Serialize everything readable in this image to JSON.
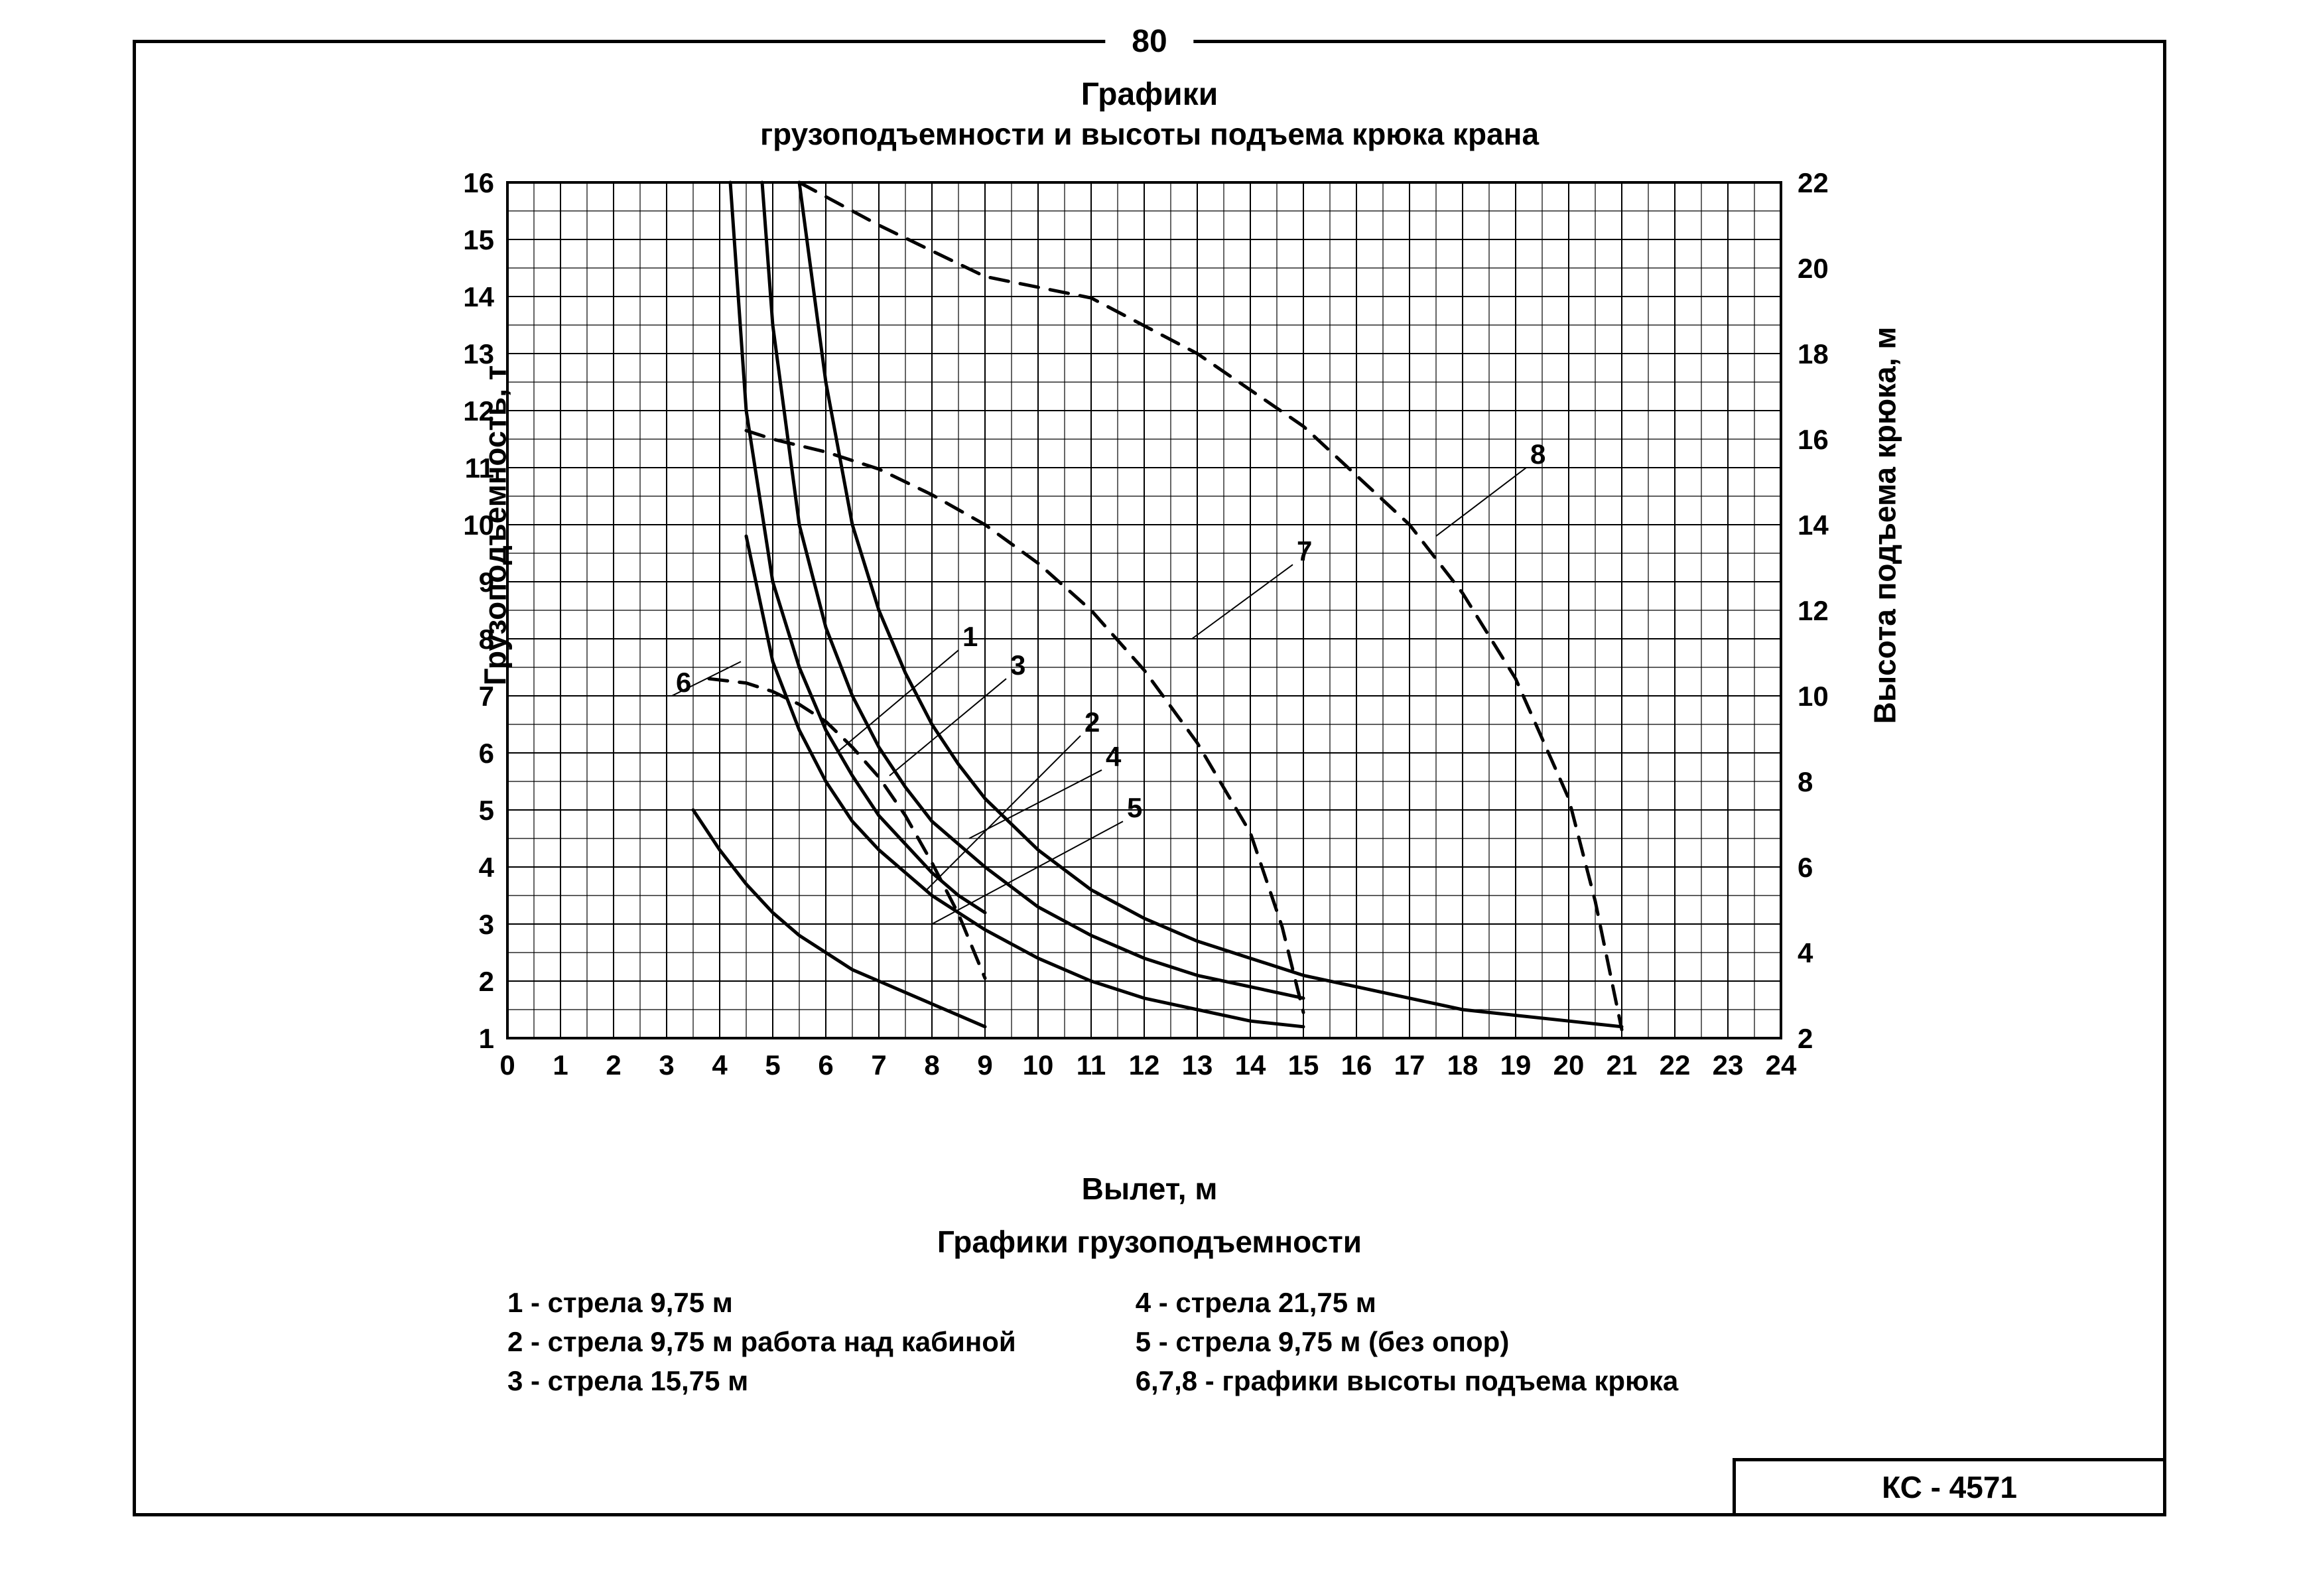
{
  "page_number": "80",
  "title_line1": "Графики",
  "title_line2": "грузоподъемности и высоты подъема крюка крана",
  "axis_left_label": "Грузоподъемность, т",
  "axis_right_label": "Высота подъема крюка, м",
  "axis_bottom_label": "Вылет, м",
  "subheading": "Графики грузоподъемности",
  "legend_col1": [
    "1 - стрела 9,75 м",
    "2 - стрела 9,75 м работа над кабиной",
    "3 - стрела 15,75 м"
  ],
  "legend_col2": [
    "4 - стрела 21,75 м",
    "5 - стрела 9,75 м (без опор)",
    "6,7,8 - графики высоты подъема крюка"
  ],
  "model_code": "КС - 4571",
  "chart": {
    "type": "line",
    "x": {
      "min": 0,
      "max": 24,
      "ticks": [
        0,
        1,
        2,
        3,
        4,
        5,
        6,
        7,
        8,
        9,
        10,
        11,
        12,
        13,
        14,
        15,
        16,
        17,
        18,
        19,
        20,
        21,
        22,
        23,
        24
      ]
    },
    "y_left": {
      "min": 1,
      "max": 16,
      "ticks": [
        1,
        2,
        3,
        4,
        5,
        6,
        7,
        8,
        9,
        10,
        11,
        12,
        13,
        14,
        15,
        16
      ]
    },
    "y_right": {
      "min": 2,
      "max": 22,
      "ticks": [
        2,
        4,
        6,
        8,
        10,
        12,
        14,
        16,
        18,
        20,
        22
      ]
    },
    "grid_minor_per_major": 2,
    "colors": {
      "line": "#000000",
      "grid": "#000000",
      "background": "#ffffff"
    },
    "stroke_width_solid": 5,
    "stroke_width_dashed": 5,
    "stroke_width_grid": 2,
    "stroke_width_grid_minor": 1.2,
    "dash_pattern": "28 18",
    "curves_solid": {
      "1": [
        [
          4.2,
          16
        ],
        [
          4.5,
          12
        ],
        [
          5,
          9
        ],
        [
          5.5,
          7.5
        ],
        [
          6,
          6.4
        ],
        [
          6.5,
          5.6
        ],
        [
          7,
          4.9
        ],
        [
          7.5,
          4.4
        ],
        [
          8,
          3.9
        ],
        [
          8.5,
          3.5
        ],
        [
          9,
          3.2
        ]
      ],
      "2": [
        [
          4.5,
          9.8
        ],
        [
          5,
          7.6
        ],
        [
          5.5,
          6.4
        ],
        [
          6,
          5.5
        ],
        [
          6.5,
          4.8
        ],
        [
          7,
          4.3
        ],
        [
          7.5,
          3.9
        ],
        [
          8,
          3.5
        ],
        [
          8.5,
          3.2
        ],
        [
          9,
          2.9
        ],
        [
          10,
          2.4
        ],
        [
          11,
          2.0
        ],
        [
          12,
          1.7
        ],
        [
          13,
          1.5
        ],
        [
          14,
          1.3
        ],
        [
          15,
          1.2
        ]
      ],
      "3": [
        [
          4.8,
          16
        ],
        [
          5,
          13.5
        ],
        [
          5.5,
          10
        ],
        [
          6,
          8.2
        ],
        [
          6.5,
          7
        ],
        [
          7,
          6.1
        ],
        [
          7.5,
          5.4
        ],
        [
          8,
          4.8
        ],
        [
          8.5,
          4.4
        ],
        [
          9,
          4.0
        ],
        [
          10,
          3.3
        ],
        [
          11,
          2.8
        ],
        [
          12,
          2.4
        ],
        [
          13,
          2.1
        ],
        [
          14,
          1.9
        ],
        [
          15,
          1.7
        ]
      ],
      "4": [
        [
          5.5,
          16
        ],
        [
          6,
          12.5
        ],
        [
          6.5,
          10
        ],
        [
          7,
          8.5
        ],
        [
          7.5,
          7.4
        ],
        [
          8,
          6.5
        ],
        [
          8.5,
          5.8
        ],
        [
          9,
          5.2
        ],
        [
          10,
          4.3
        ],
        [
          11,
          3.6
        ],
        [
          12,
          3.1
        ],
        [
          13,
          2.7
        ],
        [
          14,
          2.4
        ],
        [
          15,
          2.1
        ],
        [
          16,
          1.9
        ],
        [
          17,
          1.7
        ],
        [
          18,
          1.5
        ],
        [
          19,
          1.4
        ],
        [
          20,
          1.3
        ],
        [
          21,
          1.2
        ]
      ],
      "5": [
        [
          3.5,
          5.0
        ],
        [
          4,
          4.3
        ],
        [
          4.5,
          3.7
        ],
        [
          5,
          3.2
        ],
        [
          5.5,
          2.8
        ],
        [
          6,
          2.5
        ],
        [
          6.5,
          2.2
        ],
        [
          7,
          2.0
        ],
        [
          7.5,
          1.8
        ],
        [
          8,
          1.6
        ],
        [
          8.5,
          1.4
        ],
        [
          9,
          1.2
        ]
      ]
    },
    "curves_dashed": {
      "6": [
        [
          3.8,
          10.4
        ],
        [
          4.5,
          10.3
        ],
        [
          5,
          10.1
        ],
        [
          5.5,
          9.8
        ],
        [
          6,
          9.4
        ],
        [
          6.5,
          8.8
        ],
        [
          7,
          8.1
        ],
        [
          7.5,
          7.2
        ],
        [
          8,
          6.1
        ],
        [
          8.5,
          4.9
        ],
        [
          9,
          3.4
        ]
      ],
      "7": [
        [
          4.5,
          16.2
        ],
        [
          5,
          16
        ],
        [
          6,
          15.7
        ],
        [
          7,
          15.3
        ],
        [
          8,
          14.7
        ],
        [
          9,
          14
        ],
        [
          10,
          13.1
        ],
        [
          11,
          12
        ],
        [
          12,
          10.6
        ],
        [
          13,
          8.9
        ],
        [
          14,
          6.8
        ],
        [
          14.6,
          4.6
        ],
        [
          15,
          2.6
        ]
      ],
      "8": [
        [
          5.5,
          22
        ],
        [
          7,
          21
        ],
        [
          9,
          19.8
        ],
        [
          11,
          19.3
        ],
        [
          13,
          18
        ],
        [
          15,
          16.3
        ],
        [
          17,
          14
        ],
        [
          18,
          12.4
        ],
        [
          19,
          10.4
        ],
        [
          20,
          7.6
        ],
        [
          20.5,
          5.2
        ],
        [
          21,
          2.2
        ]
      ]
    },
    "curve_label_positions": {
      "1": {
        "x": 8.5,
        "y_left": 7.8,
        "leader_to": {
          "x": 6.2,
          "y_left": 6.0
        }
      },
      "2": {
        "x": 10.8,
        "y_left": 6.3,
        "leader_to": {
          "x": 7.9,
          "y_left": 3.6
        }
      },
      "3": {
        "x": 9.4,
        "y_left": 7.3,
        "leader_to": {
          "x": 7.2,
          "y_left": 5.6
        }
      },
      "4": {
        "x": 11.2,
        "y_left": 5.7,
        "leader_to": {
          "x": 8.7,
          "y_left": 4.5
        }
      },
      "5": {
        "x": 11.6,
        "y_left": 4.8,
        "leader_to": {
          "x": 8.0,
          "y_left": 3.0
        }
      },
      "6": {
        "x": 3.1,
        "y_left": 7.0,
        "leader_to": {
          "x": 4.4,
          "y_left": 7.6
        }
      },
      "7": {
        "x": 14.8,
        "y_left": 9.3,
        "leader_to": {
          "x": 12.9,
          "y_left": 8.0
        }
      },
      "8": {
        "x": 19.2,
        "y_left": 11.0,
        "leader_to": {
          "x": 17.5,
          "y_left": 9.8
        }
      }
    }
  }
}
